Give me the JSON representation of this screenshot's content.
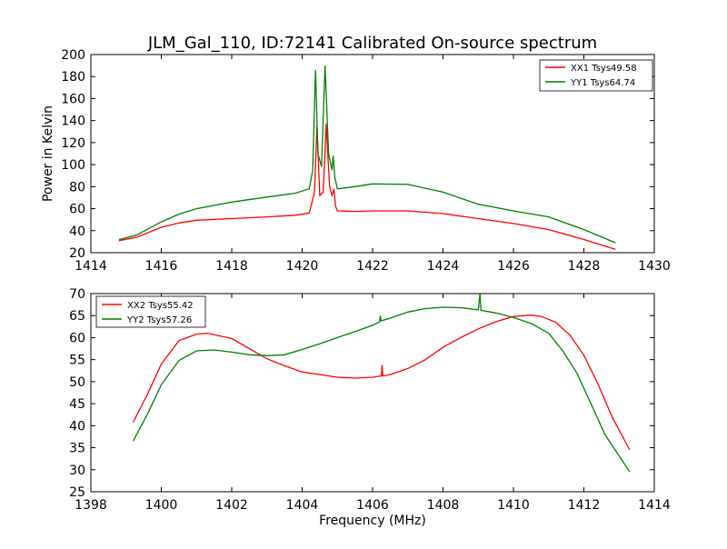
{
  "figure_title": "JLM_Gal_110, ID:72141 Calibrated On-source spectrum",
  "colors": {
    "xx": "#ff0000",
    "yy": "#008000",
    "axes": "#000000"
  },
  "chart_data": [
    {
      "type": "line",
      "ylabel": "Power in Kelvin",
      "xlabel": "",
      "xlim": [
        1414,
        1430
      ],
      "ylim": [
        20,
        200
      ],
      "xticks": [
        "1414",
        "1416",
        "1418",
        "1420",
        "1422",
        "1424",
        "1426",
        "1428",
        "1430"
      ],
      "yticks": [
        "20",
        "40",
        "60",
        "80",
        "100",
        "120",
        "140",
        "160",
        "180",
        "200"
      ],
      "legend_position": "top-right",
      "series": [
        {
          "name": "XX1 Tsys49.58",
          "color": "#ff0000",
          "points": [
            [
              1414.8,
              31
            ],
            [
              1415.3,
              34
            ],
            [
              1416,
              43
            ],
            [
              1416.5,
              47
            ],
            [
              1417,
              49.5
            ],
            [
              1418,
              51
            ],
            [
              1419,
              52.5
            ],
            [
              1419.8,
              54
            ],
            [
              1420.2,
              56
            ],
            [
              1420.35,
              75
            ],
            [
              1420.42,
              135
            ],
            [
              1420.5,
              72
            ],
            [
              1420.6,
              75
            ],
            [
              1420.68,
              137
            ],
            [
              1420.78,
              80
            ],
            [
              1420.85,
              72
            ],
            [
              1420.9,
              78
            ],
            [
              1420.95,
              62
            ],
            [
              1421,
              58
            ],
            [
              1421.5,
              57.5
            ],
            [
              1422,
              58
            ],
            [
              1423,
              58
            ],
            [
              1424,
              55.5
            ],
            [
              1425,
              51
            ],
            [
              1426,
              46.5
            ],
            [
              1427,
              41
            ],
            [
              1428,
              32
            ],
            [
              1428.9,
              23
            ]
          ]
        },
        {
          "name": "YY1 Tsys64.74",
          "color": "#008000",
          "points": [
            [
              1414.8,
              32
            ],
            [
              1415.3,
              36
            ],
            [
              1416,
              48
            ],
            [
              1416.5,
              55
            ],
            [
              1417,
              60
            ],
            [
              1418,
              66
            ],
            [
              1419,
              70.5
            ],
            [
              1419.8,
              74
            ],
            [
              1420.2,
              78
            ],
            [
              1420.3,
              95
            ],
            [
              1420.38,
              186
            ],
            [
              1420.45,
              110
            ],
            [
              1420.55,
              98
            ],
            [
              1420.65,
              190
            ],
            [
              1420.75,
              110
            ],
            [
              1420.85,
              95
            ],
            [
              1420.88,
              108
            ],
            [
              1420.93,
              88
            ],
            [
              1421,
              78
            ],
            [
              1421.5,
              80
            ],
            [
              1422,
              82.5
            ],
            [
              1423,
              82
            ],
            [
              1424,
              75
            ],
            [
              1425,
              64
            ],
            [
              1426,
              58
            ],
            [
              1427,
              52.5
            ],
            [
              1428,
              41
            ],
            [
              1428.9,
              29
            ]
          ]
        }
      ]
    },
    {
      "type": "line",
      "ylabel": "",
      "xlabel": "Frequency (MHz)",
      "xlim": [
        1398,
        1414
      ],
      "ylim": [
        25,
        70
      ],
      "xticks": [
        "1398",
        "1400",
        "1402",
        "1404",
        "1406",
        "1408",
        "1410",
        "1412",
        "1414"
      ],
      "yticks": [
        "25",
        "30",
        "35",
        "40",
        "45",
        "50",
        "55",
        "60",
        "65",
        "70"
      ],
      "legend_position": "top-left",
      "series": [
        {
          "name": "XX2 Tsys55.42",
          "color": "#ff0000",
          "points": [
            [
              1399.2,
              40.8
            ],
            [
              1399.6,
              47
            ],
            [
              1400,
              54
            ],
            [
              1400.5,
              59.3
            ],
            [
              1401,
              60.8
            ],
            [
              1401.3,
              61
            ],
            [
              1402,
              59.8
            ],
            [
              1402.5,
              57.5
            ],
            [
              1403,
              55.2
            ],
            [
              1403.5,
              53.6
            ],
            [
              1404,
              52.2
            ],
            [
              1404.5,
              51.6
            ],
            [
              1405,
              51
            ],
            [
              1405.5,
              50.8
            ],
            [
              1406,
              51
            ],
            [
              1406.25,
              51.3
            ],
            [
              1406.27,
              53.8
            ],
            [
              1406.29,
              51.3
            ],
            [
              1406.5,
              51.6
            ],
            [
              1407,
              53
            ],
            [
              1407.5,
              55
            ],
            [
              1408,
              57.8
            ],
            [
              1408.5,
              60
            ],
            [
              1409,
              62
            ],
            [
              1409.5,
              63.6
            ],
            [
              1410,
              64.8
            ],
            [
              1410.5,
              65.1
            ],
            [
              1410.8,
              64.8
            ],
            [
              1411.2,
              63.5
            ],
            [
              1411.6,
              60.6
            ],
            [
              1412,
              56
            ],
            [
              1412.4,
              49.5
            ],
            [
              1412.8,
              42
            ],
            [
              1413.3,
              34.5
            ]
          ]
        },
        {
          "name": "YY2 Tsys57.26",
          "color": "#008000",
          "points": [
            [
              1399.2,
              36.5
            ],
            [
              1399.6,
              42.5
            ],
            [
              1400,
              49.3
            ],
            [
              1400.5,
              54.8
            ],
            [
              1401,
              57
            ],
            [
              1401.5,
              57.2
            ],
            [
              1402,
              56.7
            ],
            [
              1402.5,
              56.1
            ],
            [
              1403,
              55.9
            ],
            [
              1403.5,
              56.1
            ],
            [
              1404,
              57.3
            ],
            [
              1404.5,
              58.6
            ],
            [
              1405,
              60
            ],
            [
              1405.5,
              61.4
            ],
            [
              1406,
              62.8
            ],
            [
              1406.2,
              63.6
            ],
            [
              1406.22,
              65
            ],
            [
              1406.24,
              63.8
            ],
            [
              1406.5,
              64.4
            ],
            [
              1407,
              65.8
            ],
            [
              1407.5,
              66.6
            ],
            [
              1408,
              66.9
            ],
            [
              1408.5,
              66.8
            ],
            [
              1409,
              66.3
            ],
            [
              1409.05,
              70
            ],
            [
              1409.08,
              66.2
            ],
            [
              1409.5,
              65.6
            ],
            [
              1410,
              64.6
            ],
            [
              1410.5,
              63.2
            ],
            [
              1411,
              61
            ],
            [
              1411.4,
              57
            ],
            [
              1411.8,
              52
            ],
            [
              1412.2,
              45
            ],
            [
              1412.6,
              38
            ],
            [
              1413.3,
              29.5
            ]
          ]
        }
      ]
    }
  ]
}
